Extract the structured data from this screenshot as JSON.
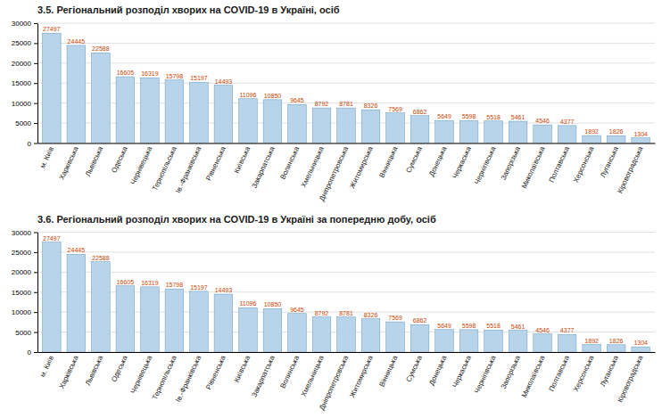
{
  "chart_data": [
    {
      "type": "bar",
      "title": "3.5.  Регіональний розподіл хворих на COVID-19 в Україні, осіб",
      "categories": [
        "м. Київ",
        "Харківська",
        "Львівська",
        "Одеська",
        "Чернівецька",
        "Тернопільська",
        "Ів.-Франківська",
        "Рівненська",
        "Київська",
        "Закарпатська",
        "Волинська",
        "Хмельницька",
        "Дніпропетровська",
        "Житомирська",
        "Вінницька",
        "Сумська",
        "Донецька",
        "Черкаська",
        "Чернігівська",
        "Запорізька",
        "Миколаївська",
        "Полтавська",
        "Херсонська",
        "Луганська",
        "Кіровоградська"
      ],
      "values": [
        27497,
        24445,
        22588,
        16605,
        16319,
        15798,
        15197,
        14493,
        11096,
        10850,
        9645,
        8792,
        8781,
        8326,
        7569,
        6862,
        5649,
        5598,
        5518,
        5461,
        4546,
        4377,
        1892,
        1826,
        1304
      ],
      "color": "#b8d4ea",
      "ylim": [
        0,
        30000
      ],
      "yticks": [
        0,
        5000,
        10000,
        15000,
        20000,
        25000,
        30000
      ],
      "grid": true,
      "data_labels": true
    },
    {
      "type": "bar",
      "title": "3.6.  Регіональний розподіл хворих на COVID-19 в Україні за попередню добу, осіб",
      "categories": [
        "м. Київ",
        "Харківська",
        "Львівська",
        "Одеська",
        "Чернівецька",
        "Тернопільська",
        "Ів.-Франківська",
        "Рівненська",
        "Київська",
        "Закарпатська",
        "Волинська",
        "Хмельницька",
        "Дніпропетровська",
        "Житомирська",
        "Вінницька",
        "Сумська",
        "Донецька",
        "Черкаська",
        "Чернігівська",
        "Запорізька",
        "Миколаївська",
        "Полтавська",
        "Херсонська",
        "Луганська",
        "Кіровоградська"
      ],
      "values": [
        27497,
        24445,
        22588,
        16605,
        16319,
        15798,
        15197,
        14493,
        11096,
        10850,
        9645,
        8792,
        8781,
        8326,
        7569,
        6862,
        5649,
        5598,
        5518,
        5461,
        4546,
        4377,
        1892,
        1826,
        1304
      ],
      "color": "#b8d4ea",
      "ylim": [
        0,
        30000
      ],
      "yticks": [
        0,
        5000,
        10000,
        15000,
        20000,
        25000,
        30000
      ],
      "grid": true,
      "data_labels": true
    }
  ]
}
